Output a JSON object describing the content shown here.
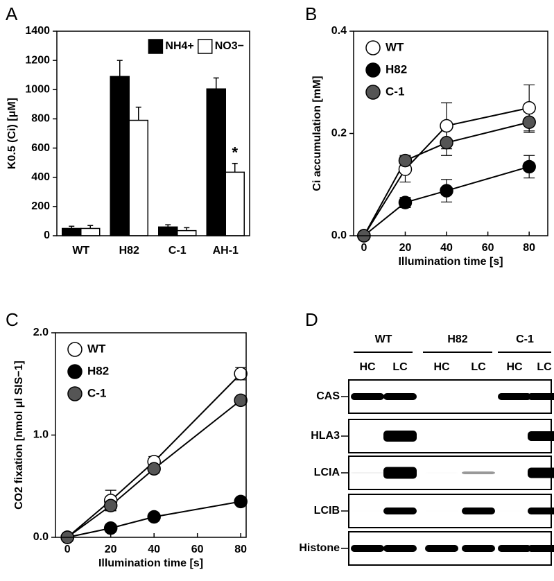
{
  "chart_data": [
    {
      "type": "bar",
      "panel": "A",
      "ylabel": "K0.5 (Ci)  [μM]",
      "categories": [
        "WT",
        "H82",
        "C-1",
        "AH-1"
      ],
      "series": [
        {
          "name": "NH4+",
          "color": "#000000",
          "values": [
            50,
            1090,
            60,
            1005
          ],
          "errors": [
            15,
            110,
            15,
            75
          ]
        },
        {
          "name": "NO3−",
          "color": "#ffffff",
          "values": [
            50,
            790,
            35,
            435
          ],
          "errors": [
            20,
            90,
            20,
            60
          ]
        }
      ],
      "annotation": "*",
      "ylim": [
        0,
        1400
      ],
      "yticks": [
        0,
        200,
        400,
        600,
        800,
        1000,
        1200,
        1400
      ],
      "legend": "top-right"
    },
    {
      "type": "line",
      "panel": "B",
      "xlabel": "Illumination time [s]",
      "ylabel": "Ci accumulation  [mM]",
      "x": [
        0,
        20,
        40,
        80
      ],
      "series": [
        {
          "name": "WT",
          "color": "#ffffff",
          "values": [
            0,
            0.13,
            0.215,
            0.25
          ],
          "errors": [
            0,
            0.025,
            0.045,
            0.045
          ]
        },
        {
          "name": "H82",
          "color": "#000000",
          "values": [
            0,
            0.065,
            0.088,
            0.135
          ],
          "errors": [
            0,
            0.01,
            0.022,
            0.022
          ]
        },
        {
          "name": "C-1",
          "color": "#555555",
          "values": [
            0,
            0.147,
            0.182,
            0.222
          ],
          "errors": [
            0,
            0.01,
            0.025,
            0.02
          ]
        }
      ],
      "xlim": [
        -5,
        89
      ],
      "xticks": [
        0,
        20,
        40,
        60,
        80
      ],
      "ylim": [
        0,
        0.4
      ],
      "yticks": [
        {
          "value": 0,
          "label": "0.0"
        },
        0.2,
        0.4
      ],
      "legend": "top-left"
    },
    {
      "type": "line",
      "panel": "C",
      "xlabel": "Illumination time [s]",
      "ylabel": "CO2 fixation [nmol μl SIS−1]",
      "x": [
        0,
        20,
        40,
        80
      ],
      "series": [
        {
          "name": "WT",
          "color": "#ffffff",
          "values": [
            0,
            0.36,
            0.74,
            1.6
          ],
          "errors": [
            0,
            0.1,
            0.05,
            0.06
          ]
        },
        {
          "name": "H82",
          "color": "#000000",
          "values": [
            0,
            0.09,
            0.2,
            0.35
          ],
          "errors": [
            0,
            0.02,
            0.03,
            0.03
          ]
        },
        {
          "name": "C-1",
          "color": "#555555",
          "values": [
            0,
            0.31,
            0.67,
            1.34
          ],
          "errors": [
            0,
            0.05,
            0.04,
            0.03
          ]
        }
      ],
      "xlim": [
        -5.5,
        82.5
      ],
      "xticks": [
        0,
        20,
        40,
        60,
        80
      ],
      "ylim": [
        0,
        2
      ],
      "yticks": [
        {
          "value": 0,
          "label": "0.0"
        },
        {
          "value": 1,
          "label": "1.0"
        },
        {
          "value": 2,
          "label": "2.0"
        }
      ],
      "legend": "top-left"
    }
  ],
  "blot": {
    "panel": "D",
    "groups": [
      "WT",
      "H82",
      "C-1"
    ],
    "lanes": [
      "HC",
      "LC",
      "HC",
      "LC",
      "HC",
      "LC"
    ],
    "rows": [
      "CAS",
      "HLA3",
      "LCIA",
      "LCIB",
      "Histone"
    ]
  }
}
